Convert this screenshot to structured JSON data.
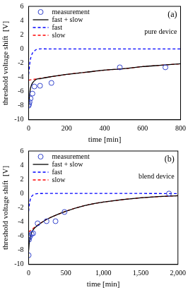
{
  "chart_data": [
    {
      "type": "scatter",
      "x_label": "time [min]",
      "y_label": "threshold voltage shift  [V]",
      "annotations": [
        "(a)",
        "pure device"
      ],
      "xlim": [
        0,
        800
      ],
      "xticks": [
        0,
        200,
        400,
        600,
        800
      ],
      "ylim": [
        -10,
        6
      ],
      "yticks": [
        -10,
        -8,
        -6,
        -4,
        -2,
        0,
        2,
        4,
        6
      ],
      "grid": false,
      "legend": "top-left",
      "series": [
        {
          "name": "measurement",
          "type": "scatter",
          "marker": "circle",
          "color": "#3344cc",
          "x": [
            0,
            2,
            5,
            10,
            20,
            30,
            60,
            120,
            480,
            720
          ],
          "values": [
            -8.0,
            -7.8,
            -7.5,
            -7.0,
            -6.3,
            -5.3,
            -5.2,
            -4.8,
            -2.6,
            -2.6
          ]
        },
        {
          "name": "fast + slow",
          "type": "line",
          "line_style": "solid",
          "color": "#000000",
          "x": [
            0,
            5,
            10,
            20,
            40,
            60,
            100,
            200,
            300,
            400,
            500,
            600,
            700,
            800
          ],
          "values": [
            -8.0,
            -6.5,
            -5.5,
            -4.8,
            -4.3,
            -4.2,
            -4.0,
            -3.6,
            -3.3,
            -3.0,
            -2.8,
            -2.5,
            -2.3,
            -2.1
          ]
        },
        {
          "name": "fast",
          "type": "line",
          "line_style": "dashed",
          "color": "#0000ff",
          "x": [
            0,
            5,
            10,
            20,
            40,
            60,
            100,
            800
          ],
          "values": [
            -3.6,
            -2.3,
            -1.4,
            -0.6,
            -0.1,
            0,
            0,
            0
          ]
        },
        {
          "name": "slow",
          "type": "line",
          "line_style": "dashed",
          "color": "#ff0000",
          "x": [
            0,
            50,
            100,
            200,
            300,
            400,
            500,
            600,
            700,
            800
          ],
          "values": [
            -4.4,
            -4.2,
            -4.0,
            -3.6,
            -3.3,
            -3.0,
            -2.8,
            -2.5,
            -2.3,
            -2.1
          ]
        }
      ]
    },
    {
      "type": "scatter",
      "x_label": "time [min]",
      "y_label": "threshold voltage shift  [V]",
      "annotations": [
        "(b)",
        "blend device"
      ],
      "xlim": [
        0,
        2000
      ],
      "xticks": [
        0,
        500,
        1000,
        1500,
        2000
      ],
      "ylim": [
        -10,
        6
      ],
      "yticks": [
        -10,
        -8,
        -6,
        -4,
        -2,
        0,
        2,
        4,
        6
      ],
      "grid": false,
      "legend": "top-left",
      "series": [
        {
          "name": "measurement",
          "type": "scatter",
          "marker": "circle",
          "color": "#3344cc",
          "x": [
            0,
            5,
            10,
            20,
            40,
            60,
            120,
            240,
            360,
            480,
            1880
          ],
          "values": [
            -8.7,
            -6.5,
            -6.2,
            -6.0,
            -5.7,
            -5.6,
            -4.2,
            -3.9,
            -3.9,
            -2.6,
            0
          ]
        },
        {
          "name": "fast + slow",
          "type": "line",
          "line_style": "solid",
          "color": "#000000",
          "x": [
            0,
            10,
            30,
            60,
            120,
            250,
            500,
            750,
            1000,
            1500,
            2000
          ],
          "values": [
            -8.0,
            -6.8,
            -5.8,
            -5.1,
            -4.5,
            -3.6,
            -2.5,
            -1.7,
            -1.2,
            -0.6,
            -0.3
          ]
        },
        {
          "name": "fast",
          "type": "line",
          "line_style": "dashed",
          "color": "#0000ff",
          "x": [
            0,
            10,
            30,
            60,
            120,
            2000
          ],
          "values": [
            -2.5,
            -1.5,
            -0.6,
            -0.2,
            0,
            0
          ]
        },
        {
          "name": "slow",
          "type": "line",
          "line_style": "dashed",
          "color": "#ff0000",
          "x": [
            0,
            100,
            250,
            500,
            750,
            1000,
            1500,
            2000
          ],
          "values": [
            -5.4,
            -4.6,
            -3.6,
            -2.5,
            -1.7,
            -1.2,
            -0.6,
            -0.3
          ]
        }
      ]
    }
  ]
}
